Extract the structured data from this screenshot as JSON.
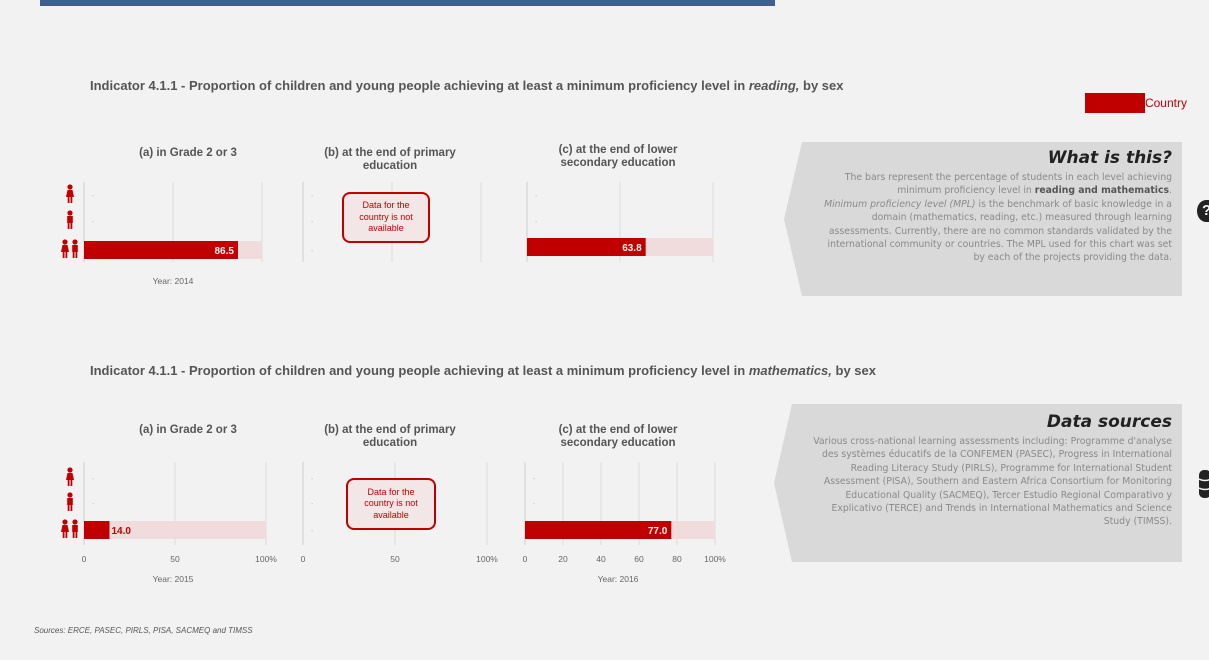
{
  "sections": [
    {
      "title_prefix": "Indicator 4.1.1 - Proportion of children and young people achieving at least a minimum proficiency level in ",
      "title_subject": "reading,",
      "title_suffix": " by sex"
    },
    {
      "title_prefix": "Indicator 4.1.1 - Proportion of children and young people achieving at least a minimum proficiency level in ",
      "title_subject": "mathematics,",
      "title_suffix": " by sex"
    }
  ],
  "legend": {
    "label": "Country",
    "color": "#c00000"
  },
  "nodata_text": "Data for the country is not available",
  "info_panel": {
    "title": "What is this?",
    "p1": "The bars represent the percentage of students in each level achieving minimum proficiency level in ",
    "p1_bold": "reading and mathematics",
    "p1_end": ".",
    "p2_italic": "Minimum proficiency level (MPL)",
    "p2": " is the benchmark of basic knowledge in a domain (mathematics, reading, etc.) measured through learning assessments. Currently, there are no common standards validated by the international community or countries. The MPL used for this chart was set by each of the projects providing the data."
  },
  "sources_panel": {
    "title": "Data sources",
    "text": "Various cross-national learning assessments including: Programme d'analyse des systèmes éducatifs de la CONFEMEN (PASEC), Progress in International Reading Literacy Study (PIRLS), Programme for International Student Assessment (PISA), Southern and Eastern Africa Consortium for Monitoring Educational Quality (SACMEQ), Tercer Estudio Regional Comparativo y Explicativo (TERCE) and Trends in International Mathematics and Science Study (TIMSS)."
  },
  "sources_note": "Sources: ERCE, PASEC, PIRLS, PISA, SACMEQ and TIMSS",
  "icons": {
    "female": "female-person-icon",
    "male": "male-person-icon",
    "both": "both-sexes-icon",
    "help": "question-icon",
    "database": "database-icon"
  },
  "chart_data": [
    {
      "type": "bar",
      "section": "reading",
      "title": "(a) in Grade 2 or 3",
      "categories": [
        "female",
        "male",
        "both"
      ],
      "values": [
        null,
        null,
        86.5
      ],
      "value_labels": [
        "-",
        "-",
        "86.5"
      ],
      "xlim": [
        0,
        100
      ],
      "year": "Year: 2014",
      "has_data": true
    },
    {
      "type": "bar",
      "section": "reading",
      "title": "(b) at the end of primary education",
      "categories": [
        "female",
        "male",
        "both"
      ],
      "values": [
        null,
        null,
        null
      ],
      "value_labels": [
        "-",
        "-",
        "-"
      ],
      "xlim": [
        0,
        100
      ],
      "year": "",
      "has_data": false
    },
    {
      "type": "bar",
      "section": "reading",
      "title": "(c) at the end of lower secondary education",
      "categories": [
        "female",
        "male",
        "both"
      ],
      "values": [
        null,
        null,
        63.8
      ],
      "value_labels": [
        "-",
        "-",
        "63.8"
      ],
      "xlim": [
        0,
        100
      ],
      "year": "",
      "has_data": true
    },
    {
      "type": "bar",
      "section": "mathematics",
      "title": "(a) in Grade 2 or 3",
      "categories": [
        "female",
        "male",
        "both"
      ],
      "values": [
        null,
        null,
        14.0
      ],
      "value_labels": [
        "-",
        "-",
        "14.0"
      ],
      "xlim": [
        0,
        100
      ],
      "ticks": [
        "0",
        "50",
        "100%"
      ],
      "year": "Year: 2015",
      "has_data": true
    },
    {
      "type": "bar",
      "section": "mathematics",
      "title": "(b) at the end of primary education",
      "categories": [
        "female",
        "male",
        "both"
      ],
      "values": [
        null,
        null,
        null
      ],
      "value_labels": [
        "-",
        "-",
        "-"
      ],
      "xlim": [
        0,
        100
      ],
      "ticks": [
        "0",
        "50",
        "100%"
      ],
      "year": "",
      "has_data": false
    },
    {
      "type": "bar",
      "section": "mathematics",
      "title": "(c) at the end of lower secondary education",
      "categories": [
        "female",
        "male",
        "both"
      ],
      "values": [
        null,
        null,
        77.0
      ],
      "value_labels": [
        "-",
        "-",
        "77.0"
      ],
      "xlim": [
        0,
        100
      ],
      "ticks": [
        "0",
        "20",
        "40",
        "60",
        "80",
        "100%"
      ],
      "year": "Year: 2016",
      "has_data": true
    }
  ]
}
